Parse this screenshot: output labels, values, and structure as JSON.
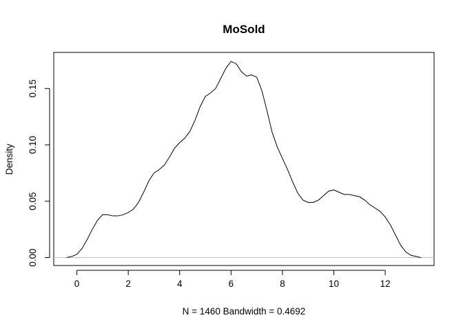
{
  "chart_data": {
    "type": "line",
    "title": "MoSold",
    "xlabel": "N = 1460   Bandwidth = 0.4692",
    "ylabel": "Density",
    "xlim": [
      -0.9,
      13.9
    ],
    "ylim": [
      -0.007,
      0.182
    ],
    "x_ticks": [
      0,
      2,
      4,
      6,
      8,
      10,
      12
    ],
    "y_ticks": [
      0.0,
      0.05,
      0.1,
      0.15
    ],
    "x_tick_labels": [
      "0",
      "2",
      "4",
      "6",
      "8",
      "10",
      "12"
    ],
    "y_tick_labels": [
      "0.00",
      "0.05",
      "0.10",
      "0.15"
    ],
    "zero_line": true,
    "grid": false,
    "series": [
      {
        "color": "#000000",
        "x": [
          -0.4,
          -0.2,
          0.0,
          0.2,
          0.4,
          0.6,
          0.8,
          1.0,
          1.2,
          1.4,
          1.6,
          1.8,
          2.0,
          2.2,
          2.4,
          2.6,
          2.8,
          3.0,
          3.2,
          3.4,
          3.6,
          3.8,
          4.0,
          4.2,
          4.4,
          4.6,
          4.8,
          5.0,
          5.2,
          5.4,
          5.6,
          5.8,
          6.0,
          6.2,
          6.4,
          6.6,
          6.8,
          7.0,
          7.2,
          7.4,
          7.6,
          7.8,
          8.0,
          8.2,
          8.4,
          8.6,
          8.8,
          9.0,
          9.2,
          9.4,
          9.6,
          9.8,
          10.0,
          10.2,
          10.4,
          10.6,
          10.8,
          11.0,
          11.2,
          11.4,
          11.6,
          11.8,
          12.0,
          12.2,
          12.4,
          12.6,
          12.8,
          13.0,
          13.2,
          13.4
        ],
        "y": [
          0.0,
          0.001,
          0.003,
          0.008,
          0.016,
          0.025,
          0.033,
          0.038,
          0.038,
          0.037,
          0.037,
          0.038,
          0.04,
          0.043,
          0.049,
          0.058,
          0.068,
          0.075,
          0.078,
          0.082,
          0.089,
          0.097,
          0.102,
          0.106,
          0.112,
          0.122,
          0.134,
          0.143,
          0.146,
          0.15,
          0.159,
          0.168,
          0.174,
          0.172,
          0.165,
          0.161,
          0.162,
          0.16,
          0.148,
          0.13,
          0.111,
          0.098,
          0.088,
          0.078,
          0.067,
          0.057,
          0.051,
          0.049,
          0.049,
          0.051,
          0.055,
          0.059,
          0.06,
          0.058,
          0.056,
          0.056,
          0.055,
          0.054,
          0.051,
          0.047,
          0.044,
          0.041,
          0.036,
          0.029,
          0.02,
          0.011,
          0.005,
          0.002,
          0.001,
          0.0
        ]
      }
    ]
  }
}
